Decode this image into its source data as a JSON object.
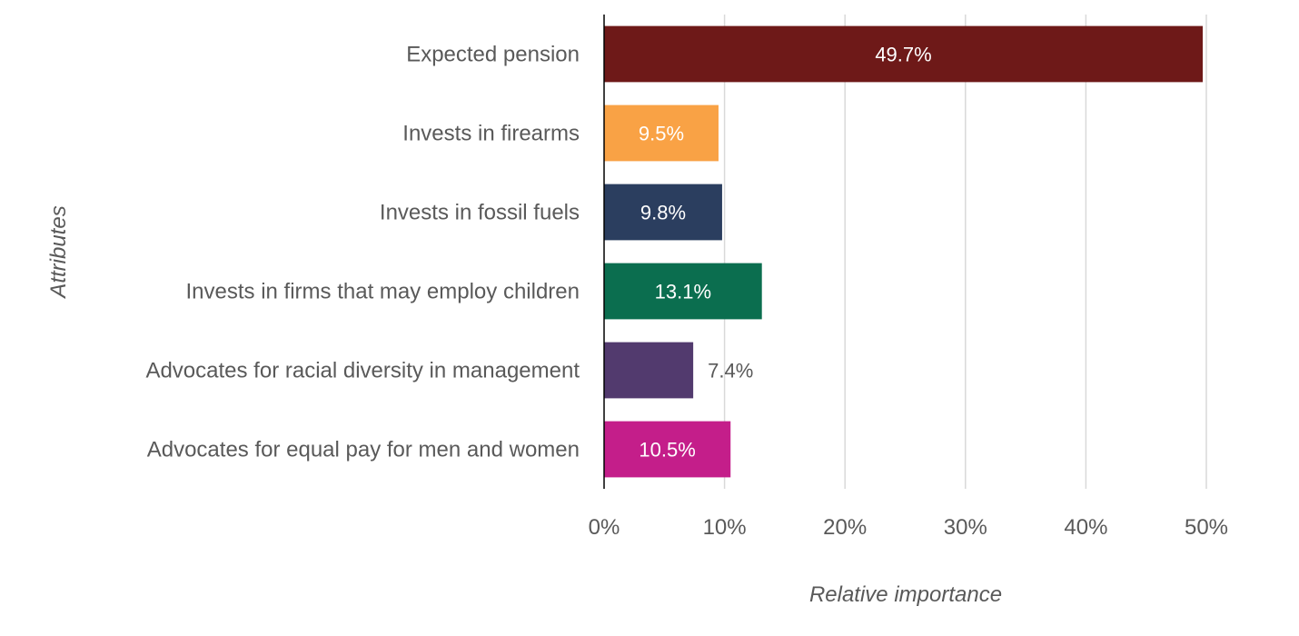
{
  "chart_data": {
    "type": "bar",
    "orientation": "horizontal",
    "categories": [
      "Expected pension",
      "Invests in firearms",
      "Invests in fossil fuels",
      "Invests in firms that may employ children",
      "Advocates for racial diversity in management",
      "Advocates for equal pay for men and women"
    ],
    "values": [
      49.7,
      9.5,
      9.8,
      13.1,
      7.4,
      10.5
    ],
    "data_labels": [
      "49.7%",
      "9.5%",
      "9.8%",
      "13.1%",
      "7.4%",
      "10.5%"
    ],
    "colors": [
      "#6e1918",
      "#f9a245",
      "#2b3e5f",
      "#0b6e4f",
      "#523a6e",
      "#c41e8a"
    ],
    "xlabel": "Relative importance",
    "ylabel": "Attributes",
    "xlim": [
      0,
      50
    ],
    "x_ticks": [
      "0%",
      "10%",
      "20%",
      "30%",
      "40%",
      "50%"
    ],
    "x_tick_values": [
      0,
      10,
      20,
      30,
      40,
      50
    ],
    "grid": true
  }
}
